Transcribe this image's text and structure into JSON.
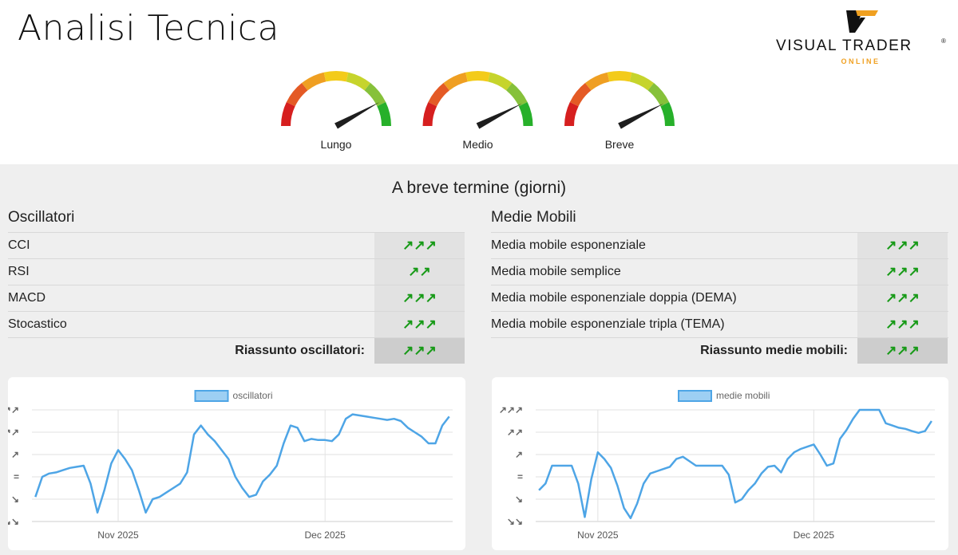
{
  "header": {
    "title": "Analisi Tecnica",
    "logo": {
      "brand": "VISUAL TRADER",
      "trademark": "®",
      "sub": "ONLINE"
    }
  },
  "gauge_range": [
    0,
    100
  ],
  "gauges": [
    {
      "label": "Lungo",
      "value": 84
    },
    {
      "label": "Medio",
      "value": 85
    },
    {
      "label": "Breve",
      "value": 85
    }
  ],
  "section_title": "A breve termine (giorni)",
  "panels": [
    {
      "title": "Oscillatori",
      "rows": [
        [
          "CCI",
          "↗↗↗"
        ],
        [
          "RSI",
          "↗↗"
        ],
        [
          "MACD",
          "↗↗↗"
        ],
        [
          "Stocastico",
          "↗↗↗"
        ]
      ],
      "summary": [
        "Riassunto oscillatori:",
        "↗↗↗"
      ]
    },
    {
      "title": "Medie Mobili",
      "rows": [
        [
          "Media mobile esponenziale",
          "↗↗↗"
        ],
        [
          "Media mobile semplice",
          "↗↗↗"
        ],
        [
          "Media mobile esponenziale doppia (DEMA)",
          "↗↗↗"
        ],
        [
          "Media mobile esponenziale tripla (TEMA)",
          "↗↗↗"
        ]
      ],
      "summary": [
        "Riassunto medie mobili:",
        "↗↗↗"
      ]
    }
  ],
  "chart_data": [
    {
      "type": "line",
      "categories": [
        null,
        null,
        null,
        null,
        null,
        null,
        null,
        null,
        null,
        null,
        null,
        null,
        "Nov 2025",
        null,
        null,
        null,
        null,
        null,
        null,
        null,
        null,
        null,
        null,
        null,
        null,
        null,
        null,
        null,
        null,
        null,
        null,
        null,
        null,
        null,
        null,
        null,
        null,
        null,
        null,
        null,
        null,
        null,
        "Dec 2025",
        null,
        null,
        null,
        null,
        null,
        null,
        null,
        null,
        null,
        null,
        null,
        null,
        null,
        null,
        null,
        null,
        null,
        null
      ],
      "series": [
        {
          "name": "oscillatori",
          "color": "#4ea5e6",
          "values": [
            -0.9,
            0.0,
            0.15,
            0.2,
            0.3,
            0.4,
            0.45,
            0.5,
            -0.3,
            -1.6,
            -0.6,
            0.6,
            1.2,
            0.8,
            0.3,
            -0.6,
            -1.6,
            -1.0,
            -0.9,
            -0.7,
            -0.5,
            -0.3,
            0.2,
            1.9,
            2.3,
            1.9,
            1.6,
            1.2,
            0.8,
            0.0,
            -0.5,
            -0.9,
            -0.8,
            -0.2,
            0.1,
            0.5,
            1.5,
            2.3,
            2.2,
            1.6,
            1.7,
            1.65,
            1.65,
            1.6,
            1.9,
            2.6,
            2.8,
            2.75,
            2.7,
            2.65,
            2.6,
            2.55,
            2.6,
            2.5,
            2.2,
            2.0,
            1.8,
            1.5,
            1.5,
            2.3,
            2.7
          ]
        }
      ],
      "ylim": [
        -2,
        3
      ],
      "yticks": [
        {
          "value": 3,
          "label": "↗↗↗"
        },
        {
          "value": 2,
          "label": "↗↗"
        },
        {
          "value": 1,
          "label": "↗"
        },
        {
          "value": 0,
          "label": "="
        },
        {
          "value": -1,
          "label": "↘"
        },
        {
          "value": -2,
          "label": "↘↘"
        }
      ],
      "grid": true
    },
    {
      "type": "line",
      "categories": [
        null,
        null,
        null,
        null,
        null,
        null,
        null,
        null,
        null,
        "Nov 2025",
        null,
        null,
        null,
        null,
        null,
        null,
        null,
        null,
        null,
        null,
        null,
        null,
        null,
        null,
        null,
        null,
        null,
        null,
        null,
        null,
        null,
        null,
        null,
        null,
        null,
        null,
        null,
        null,
        null,
        null,
        null,
        null,
        "Dec 2025",
        null,
        null,
        null,
        null,
        null,
        null,
        null,
        null,
        null,
        null,
        null,
        null,
        null,
        null,
        null,
        null,
        null,
        null
      ],
      "series": [
        {
          "name": "medie mobili",
          "color": "#4ea5e6",
          "values": [
            -0.6,
            -0.3,
            0.5,
            0.5,
            0.5,
            0.5,
            -0.3,
            -1.8,
            -0.1,
            1.1,
            0.8,
            0.4,
            -0.4,
            -1.4,
            -1.85,
            -1.2,
            -0.3,
            0.15,
            0.25,
            0.35,
            0.45,
            0.8,
            0.9,
            0.7,
            0.5,
            0.5,
            0.5,
            0.5,
            0.5,
            0.1,
            -1.15,
            -1.0,
            -0.6,
            -0.3,
            0.15,
            0.45,
            0.5,
            0.2,
            0.8,
            1.1,
            1.25,
            1.35,
            1.45,
            1.0,
            0.5,
            0.6,
            1.7,
            2.1,
            2.6,
            3.0,
            3.0,
            3.0,
            3.0,
            2.4,
            2.3,
            2.2,
            2.15,
            2.05,
            1.97,
            2.05,
            2.5
          ]
        }
      ],
      "ylim": [
        -2,
        3
      ],
      "yticks": [
        {
          "value": 3,
          "label": "↗↗↗"
        },
        {
          "value": 2,
          "label": "↗↗"
        },
        {
          "value": 1,
          "label": "↗"
        },
        {
          "value": 0,
          "label": "="
        },
        {
          "value": -1,
          "label": "↘"
        },
        {
          "value": -2,
          "label": "↘↘"
        }
      ],
      "grid": true
    }
  ]
}
